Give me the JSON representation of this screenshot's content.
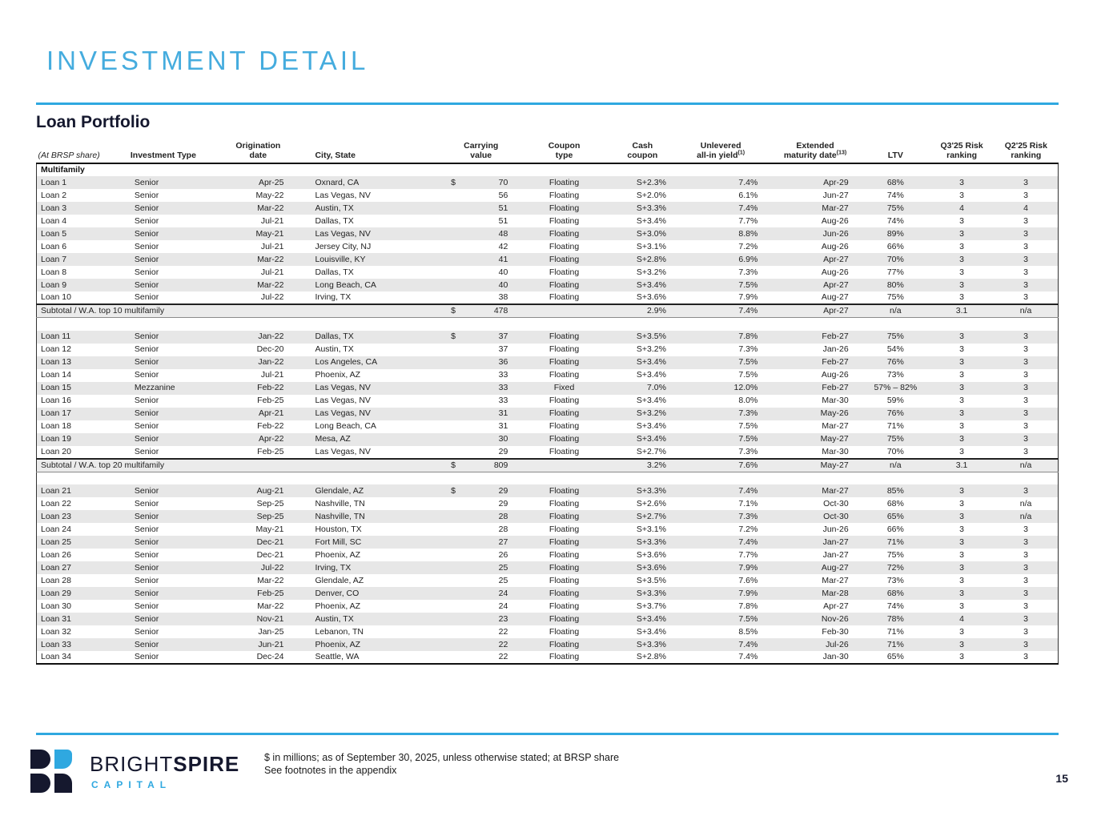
{
  "page": {
    "title": "INVESTMENT DETAIL",
    "section_title": "Loan Portfolio",
    "footnote_line1": "$ in millions; as of September 30, 2025, unless otherwise stated; at BRSP share",
    "footnote_line2": "See footnotes in the appendix",
    "page_number": "15"
  },
  "logo": {
    "brand_light": "BRIGHT",
    "brand_bold": "SPIRE",
    "subtitle": "CAPITAL"
  },
  "colors": {
    "accent_blue": "#2FA8E0",
    "title_blue": "#45ACDE",
    "navy": "#15182E",
    "stripe_gray": "#E7E7E7",
    "subtotal_gray": "#EBEBEB"
  },
  "table": {
    "headers": [
      {
        "l1": "",
        "l2": "(At BRSP share)",
        "sup": "",
        "cls": "h-corner",
        "span": 1
      },
      {
        "l1": "",
        "l2": "Investment Type",
        "sup": "",
        "cls": "h-left",
        "span": 1
      },
      {
        "l1": "Origination",
        "l2": "date",
        "sup": "",
        "cls": "h-center",
        "span": 1
      },
      {
        "l1": "",
        "l2": "City, State",
        "sup": "",
        "cls": "h-city",
        "span": 1
      },
      {
        "l1": "Carrying",
        "l2": "value",
        "sup": "",
        "cls": "h-center",
        "span": 2
      },
      {
        "l1": "Coupon",
        "l2": "type",
        "sup": "",
        "cls": "h-center",
        "span": 1
      },
      {
        "l1": "Cash",
        "l2": "coupon",
        "sup": "",
        "cls": "h-center",
        "span": 1
      },
      {
        "l1": "Unlevered",
        "l2": "all-in yield",
        "sup": "(1)",
        "cls": "h-center",
        "span": 1
      },
      {
        "l1": "Extended",
        "l2": "maturity date",
        "sup": "(13)",
        "cls": "h-center",
        "span": 1
      },
      {
        "l1": "",
        "l2": "LTV",
        "sup": "",
        "cls": "h-center",
        "span": 1
      },
      {
        "l1": "Q3'25 Risk",
        "l2": "ranking",
        "sup": "",
        "cls": "h-center",
        "span": 1
      },
      {
        "l1": "Q2'25 Risk",
        "l2": "ranking",
        "sup": "",
        "cls": "h-center",
        "span": 1
      }
    ],
    "section_label": "Multifamily",
    "groups": [
      {
        "rows": [
          [
            "Loan 1",
            "Senior",
            "Apr-25",
            "Oxnard, CA",
            "$",
            "70",
            "Floating",
            "S+2.3%",
            "7.4%",
            "Apr-29",
            "68%",
            "3",
            "3"
          ],
          [
            "Loan 2",
            "Senior",
            "May-22",
            "Las Vegas, NV",
            "",
            "56",
            "Floating",
            "S+2.0%",
            "6.1%",
            "Jun-27",
            "74%",
            "3",
            "3"
          ],
          [
            "Loan 3",
            "Senior",
            "Mar-22",
            "Austin, TX",
            "",
            "51",
            "Floating",
            "S+3.3%",
            "7.4%",
            "Mar-27",
            "75%",
            "4",
            "4"
          ],
          [
            "Loan 4",
            "Senior",
            "Jul-21",
            "Dallas, TX",
            "",
            "51",
            "Floating",
            "S+3.4%",
            "7.7%",
            "Aug-26",
            "74%",
            "3",
            "3"
          ],
          [
            "Loan 5",
            "Senior",
            "May-21",
            "Las Vegas, NV",
            "",
            "48",
            "Floating",
            "S+3.0%",
            "8.8%",
            "Jun-26",
            "89%",
            "3",
            "3"
          ],
          [
            "Loan 6",
            "Senior",
            "Jul-21",
            "Jersey City, NJ",
            "",
            "42",
            "Floating",
            "S+3.1%",
            "7.2%",
            "Aug-26",
            "66%",
            "3",
            "3"
          ],
          [
            "Loan 7",
            "Senior",
            "Mar-22",
            "Louisville, KY",
            "",
            "41",
            "Floating",
            "S+2.8%",
            "6.9%",
            "Apr-27",
            "70%",
            "3",
            "3"
          ],
          [
            "Loan 8",
            "Senior",
            "Jul-21",
            "Dallas, TX",
            "",
            "40",
            "Floating",
            "S+3.2%",
            "7.3%",
            "Aug-26",
            "77%",
            "3",
            "3"
          ],
          [
            "Loan 9",
            "Senior",
            "Mar-22",
            "Long Beach, CA",
            "",
            "40",
            "Floating",
            "S+3.4%",
            "7.5%",
            "Apr-27",
            "80%",
            "3",
            "3"
          ],
          [
            "Loan 10",
            "Senior",
            "Jul-22",
            "Irving, TX",
            "",
            "38",
            "Floating",
            "S+3.6%",
            "7.9%",
            "Aug-27",
            "75%",
            "3",
            "3"
          ]
        ],
        "subtotal": [
          "Subtotal / W.A. top 10 multifamily",
          "$",
          "478",
          "",
          "2.9%",
          "7.4%",
          "Apr-27",
          "n/a",
          "3.1",
          "n/a"
        ]
      },
      {
        "rows": [
          [
            "Loan 11",
            "Senior",
            "Jan-22",
            "Dallas, TX",
            "$",
            "37",
            "Floating",
            "S+3.5%",
            "7.8%",
            "Feb-27",
            "75%",
            "3",
            "3"
          ],
          [
            "Loan 12",
            "Senior",
            "Dec-20",
            "Austin, TX",
            "",
            "37",
            "Floating",
            "S+3.2%",
            "7.3%",
            "Jan-26",
            "54%",
            "3",
            "3"
          ],
          [
            "Loan 13",
            "Senior",
            "Jan-22",
            "Los Angeles, CA",
            "",
            "36",
            "Floating",
            "S+3.4%",
            "7.5%",
            "Feb-27",
            "76%",
            "3",
            "3"
          ],
          [
            "Loan 14",
            "Senior",
            "Jul-21",
            "Phoenix, AZ",
            "",
            "33",
            "Floating",
            "S+3.4%",
            "7.5%",
            "Aug-26",
            "73%",
            "3",
            "3"
          ],
          [
            "Loan 15",
            "Mezzanine",
            "Feb-22",
            "Las Vegas, NV",
            "",
            "33",
            "Fixed",
            "7.0%",
            "12.0%",
            "Feb-27",
            "57% – 82%",
            "3",
            "3"
          ],
          [
            "Loan 16",
            "Senior",
            "Feb-25",
            "Las Vegas, NV",
            "",
            "33",
            "Floating",
            "S+3.4%",
            "8.0%",
            "Mar-30",
            "59%",
            "3",
            "3"
          ],
          [
            "Loan 17",
            "Senior",
            "Apr-21",
            "Las Vegas, NV",
            "",
            "31",
            "Floating",
            "S+3.2%",
            "7.3%",
            "May-26",
            "76%",
            "3",
            "3"
          ],
          [
            "Loan 18",
            "Senior",
            "Feb-22",
            "Long Beach, CA",
            "",
            "31",
            "Floating",
            "S+3.4%",
            "7.5%",
            "Mar-27",
            "71%",
            "3",
            "3"
          ],
          [
            "Loan 19",
            "Senior",
            "Apr-22",
            "Mesa, AZ",
            "",
            "30",
            "Floating",
            "S+3.4%",
            "7.5%",
            "May-27",
            "75%",
            "3",
            "3"
          ],
          [
            "Loan 20",
            "Senior",
            "Feb-25",
            "Las Vegas, NV",
            "",
            "29",
            "Floating",
            "S+2.7%",
            "7.3%",
            "Mar-30",
            "70%",
            "3",
            "3"
          ]
        ],
        "subtotal": [
          "Subtotal / W.A. top 20 multifamily",
          "$",
          "809",
          "",
          "3.2%",
          "7.6%",
          "May-27",
          "n/a",
          "3.1",
          "n/a"
        ]
      },
      {
        "rows": [
          [
            "Loan 21",
            "Senior",
            "Aug-21",
            "Glendale, AZ",
            "$",
            "29",
            "Floating",
            "S+3.3%",
            "7.4%",
            "Mar-27",
            "85%",
            "3",
            "3"
          ],
          [
            "Loan 22",
            "Senior",
            "Sep-25",
            "Nashville, TN",
            "",
            "29",
            "Floating",
            "S+2.6%",
            "7.1%",
            "Oct-30",
            "68%",
            "3",
            "n/a"
          ],
          [
            "Loan 23",
            "Senior",
            "Sep-25",
            "Nashville, TN",
            "",
            "28",
            "Floating",
            "S+2.7%",
            "7.3%",
            "Oct-30",
            "65%",
            "3",
            "n/a"
          ],
          [
            "Loan 24",
            "Senior",
            "May-21",
            "Houston, TX",
            "",
            "28",
            "Floating",
            "S+3.1%",
            "7.2%",
            "Jun-26",
            "66%",
            "3",
            "3"
          ],
          [
            "Loan 25",
            "Senior",
            "Dec-21",
            "Fort Mill, SC",
            "",
            "27",
            "Floating",
            "S+3.3%",
            "7.4%",
            "Jan-27",
            "71%",
            "3",
            "3"
          ],
          [
            "Loan 26",
            "Senior",
            "Dec-21",
            "Phoenix, AZ",
            "",
            "26",
            "Floating",
            "S+3.6%",
            "7.7%",
            "Jan-27",
            "75%",
            "3",
            "3"
          ],
          [
            "Loan 27",
            "Senior",
            "Jul-22",
            "Irving, TX",
            "",
            "25",
            "Floating",
            "S+3.6%",
            "7.9%",
            "Aug-27",
            "72%",
            "3",
            "3"
          ],
          [
            "Loan 28",
            "Senior",
            "Mar-22",
            "Glendale, AZ",
            "",
            "25",
            "Floating",
            "S+3.5%",
            "7.6%",
            "Mar-27",
            "73%",
            "3",
            "3"
          ],
          [
            "Loan 29",
            "Senior",
            "Feb-25",
            "Denver, CO",
            "",
            "24",
            "Floating",
            "S+3.3%",
            "7.9%",
            "Mar-28",
            "68%",
            "3",
            "3"
          ],
          [
            "Loan 30",
            "Senior",
            "Mar-22",
            "Phoenix, AZ",
            "",
            "24",
            "Floating",
            "S+3.7%",
            "7.8%",
            "Apr-27",
            "74%",
            "3",
            "3"
          ],
          [
            "Loan 31",
            "Senior",
            "Nov-21",
            "Austin, TX",
            "",
            "23",
            "Floating",
            "S+3.4%",
            "7.5%",
            "Nov-26",
            "78%",
            "4",
            "3"
          ],
          [
            "Loan 32",
            "Senior",
            "Jan-25",
            "Lebanon, TN",
            "",
            "22",
            "Floating",
            "S+3.4%",
            "8.5%",
            "Feb-30",
            "71%",
            "3",
            "3"
          ],
          [
            "Loan 33",
            "Senior",
            "Jun-21",
            "Phoenix, AZ",
            "",
            "22",
            "Floating",
            "S+3.3%",
            "7.4%",
            "Jul-26",
            "71%",
            "3",
            "3"
          ],
          [
            "Loan 34",
            "Senior",
            "Dec-24",
            "Seattle, WA",
            "",
            "22",
            "Floating",
            "S+2.8%",
            "7.4%",
            "Jan-30",
            "65%",
            "3",
            "3"
          ]
        ]
      }
    ]
  }
}
